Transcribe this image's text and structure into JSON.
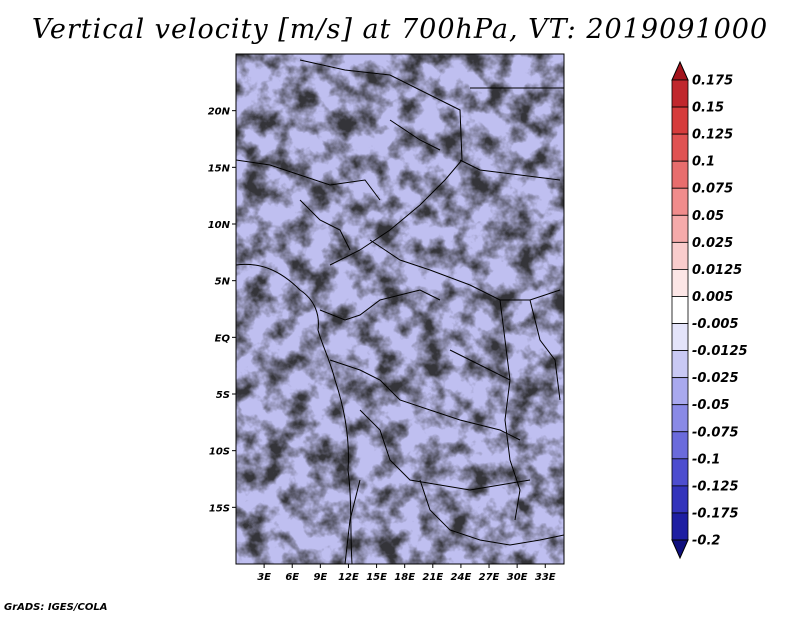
{
  "title": "Vertical velocity [m/s] at 700hPa, VT: 2019091000",
  "credit": "GrADS: IGES/COLA",
  "map": {
    "lat_ticks": [
      "20N",
      "15N",
      "10N",
      "5N",
      "EQ",
      "5S",
      "10S",
      "15S"
    ],
    "lat_values": [
      20,
      15,
      10,
      5,
      0,
      -5,
      -10,
      -15
    ],
    "lon_ticks": [
      "3E",
      "6E",
      "9E",
      "12E",
      "15E",
      "18E",
      "21E",
      "24E",
      "27E",
      "30E",
      "33E"
    ],
    "lon_values": [
      3,
      6,
      9,
      12,
      15,
      18,
      21,
      24,
      27,
      30,
      33
    ],
    "lon_range": [
      0,
      35
    ],
    "lat_range": [
      -20,
      25
    ]
  },
  "colorbar": {
    "labels": [
      "0.175",
      "0.15",
      "0.125",
      "0.1",
      "0.075",
      "0.05",
      "0.025",
      "0.0125",
      "0.005",
      "-0.005",
      "-0.0125",
      "-0.025",
      "-0.05",
      "-0.075",
      "-0.1",
      "-0.125",
      "-0.175",
      "-0.2"
    ],
    "colors": [
      "#a3141c",
      "#c0272d",
      "#d63c3c",
      "#e05252",
      "#e86d6d",
      "#f08c8c",
      "#f5aaaa",
      "#f9cccc",
      "#fce6e6",
      "#ffffff",
      "#e4e4fa",
      "#c9c9f4",
      "#a9a9ee",
      "#8a8ae6",
      "#6b6bdc",
      "#4d4dcf",
      "#3333bb",
      "#1e1ea2",
      "#0f0f7d"
    ]
  }
}
